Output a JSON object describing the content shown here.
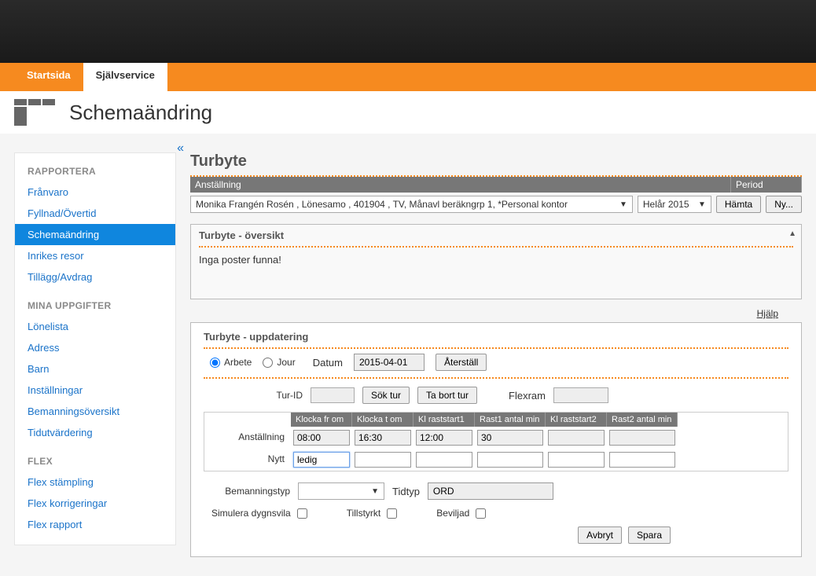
{
  "nav": {
    "tabs": [
      "Startsida",
      "Självservice"
    ],
    "active": 1
  },
  "page_title": "Schemaändring",
  "sidebar": {
    "groups": [
      {
        "heading": "RAPPORTERA",
        "items": [
          "Frånvaro",
          "Fyllnad/Övertid",
          "Schemaändring",
          "Inrikes resor",
          "Tillägg/Avdrag"
        ],
        "active_index": 2
      },
      {
        "heading": "MINA UPPGIFTER",
        "items": [
          "Lönelista",
          "Adress",
          "Barn",
          "Inställningar",
          "Bemanningsöversikt",
          "Tidutvärdering"
        ],
        "active_index": -1
      },
      {
        "heading": "FLEX",
        "items": [
          "Flex stämpling",
          "Flex korrigeringar",
          "Flex rapport"
        ],
        "active_index": -1
      }
    ]
  },
  "main_title": "Turbyte",
  "filter_header": {
    "col1": "Anställning",
    "col2": "Period"
  },
  "employment_selected": "Monika Frangén Rosén , Lönesamo , 401904 , TV, Månavl beräkngrp 1, *Personal kontor",
  "period_selected": "Helår 2015",
  "btn_fetch": "Hämta",
  "btn_new": "Ny...",
  "overview_title": "Turbyte - översikt",
  "overview_empty": "Inga poster funna!",
  "help_label": "Hjälp",
  "update_title": "Turbyte - uppdatering",
  "radio_arbete": "Arbete",
  "radio_jour": "Jour",
  "lbl_datum": "Datum",
  "datum_value": "2015-04-01",
  "btn_reset": "Återställ",
  "lbl_turid": "Tur-ID",
  "btn_soktur": "Sök tur",
  "btn_tabortur": "Ta bort tur",
  "lbl_flexram": "Flexram",
  "grid_headers": [
    "Klocka fr om",
    "Klocka t om",
    "Kl raststart1",
    "Rast1 antal min",
    "Kl raststart2",
    "Rast2 antal min"
  ],
  "row1_label": "Anställning",
  "row1": [
    "08:00",
    "16:30",
    "12:00",
    "30",
    "",
    ""
  ],
  "row2_label": "Nytt",
  "row2": [
    "ledig",
    "",
    "",
    "",
    "",
    ""
  ],
  "lbl_bemtyp": "Bemanningstyp",
  "lbl_tidtyp": "Tidtyp",
  "tidtyp_value": "ORD",
  "chk_simulera": "Simulera dygnsvila",
  "chk_tillstyrkt": "Tillstyrkt",
  "chk_beviljad": "Beviljad",
  "btn_cancel": "Avbryt",
  "btn_save": "Spara",
  "colors": {
    "accent": "#f68a1f",
    "link": "#1a73c9",
    "band": "#777777",
    "bg": "#f5f5f5"
  }
}
